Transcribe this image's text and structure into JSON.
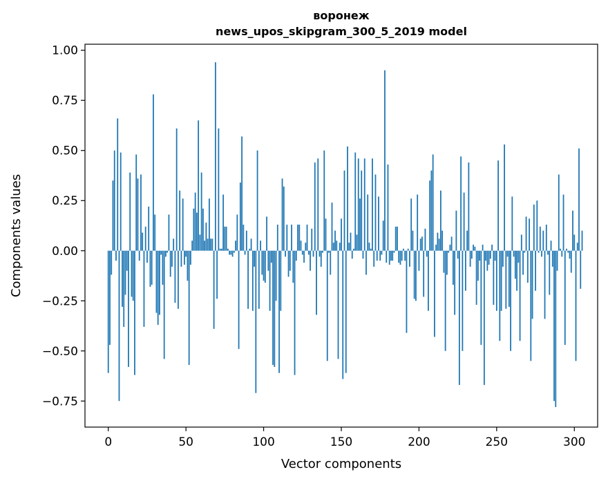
{
  "chart_data": {
    "type": "bar",
    "title": "воронеж",
    "subtitle": "news_upos_skipgram_300_5_2019 model",
    "xlabel": "Vector components",
    "ylabel": "Components values",
    "xlim": [
      -15,
      315
    ],
    "ylim": [
      -0.88,
      1.03
    ],
    "xticks": [
      0,
      50,
      100,
      150,
      200,
      250,
      300
    ],
    "xtick_labels": [
      "0",
      "50",
      "100",
      "150",
      "200",
      "250",
      "300"
    ],
    "yticks": [
      -0.75,
      -0.5,
      -0.25,
      0.0,
      0.25,
      0.5,
      0.75,
      1.0
    ],
    "ytick_labels": [
      "−0.75",
      "−0.50",
      "−0.25",
      "0.00",
      "0.25",
      "0.50",
      "0.75",
      "1.00"
    ],
    "bar_color": "#1f77b4",
    "grid": false,
    "values": [
      -0.61,
      -0.47,
      -0.12,
      0.35,
      0.5,
      -0.05,
      0.66,
      -0.75,
      0.49,
      -0.28,
      -0.38,
      -0.22,
      -0.1,
      -0.58,
      0.39,
      -0.23,
      -0.25,
      -0.62,
      0.48,
      0.36,
      -0.05,
      0.38,
      0.09,
      -0.38,
      0.12,
      -0.06,
      0.22,
      -0.18,
      -0.17,
      0.78,
      0.18,
      -0.31,
      -0.37,
      -0.32,
      -0.02,
      -0.17,
      -0.54,
      -0.03,
      -0.01,
      0.18,
      -0.13,
      -0.08,
      0.06,
      -0.26,
      0.61,
      -0.29,
      0.3,
      -0.08,
      0.26,
      -0.07,
      -0.03,
      -0.15,
      -0.57,
      -0.07,
      0.05,
      0.21,
      0.29,
      0.19,
      0.65,
      0.08,
      0.39,
      0.21,
      0.05,
      0.14,
      0.06,
      0.26,
      0.06,
      0.06,
      -0.39,
      0.94,
      -0.24,
      0.61,
      0.01,
      0.01,
      0.28,
      0.12,
      0.12,
      0.01,
      -0.02,
      -0.02,
      -0.03,
      -0.01,
      0.05,
      0.18,
      -0.49,
      0.34,
      0.57,
      0.13,
      -0.02,
      0.1,
      -0.29,
      0.01,
      0.06,
      -0.3,
      -0.08,
      -0.71,
      0.5,
      -0.29,
      0.05,
      -0.12,
      -0.15,
      -0.16,
      0.17,
      -0.1,
      -0.3,
      -0.06,
      -0.57,
      -0.58,
      -0.25,
      0.13,
      -0.61,
      -0.3,
      0.36,
      0.32,
      -0.03,
      0.13,
      -0.13,
      -0.1,
      0.13,
      -0.16,
      -0.62,
      -0.05,
      0.13,
      0.13,
      0.05,
      -0.02,
      -0.06,
      0.04,
      0.13,
      -0.02,
      -0.1,
      0.11,
      -0.03,
      0.44,
      -0.32,
      0.46,
      -0.03,
      -0.08,
      -0.01,
      0.5,
      0.16,
      -0.55,
      -0.01,
      -0.12,
      0.24,
      0.04,
      0.1,
      0.05,
      -0.54,
      0.04,
      0.16,
      -0.64,
      0.4,
      -0.61,
      0.52,
      0.04,
      0.09,
      -0.04,
      0.01,
      0.49,
      0.08,
      0.46,
      0.26,
      0.4,
      -0.04,
      0.46,
      -0.12,
      0.28,
      0.04,
      0.01,
      0.46,
      -0.08,
      0.38,
      -0.05,
      0.27,
      -0.05,
      -0.02,
      0.15,
      0.9,
      -0.06,
      0.43,
      -0.07,
      -0.05,
      -0.05,
      -0.01,
      0.12,
      0.12,
      -0.06,
      -0.07,
      -0.05,
      0.01,
      -0.05,
      -0.41,
      0.01,
      -0.08,
      0.26,
      0.1,
      -0.24,
      -0.25,
      0.28,
      -0.1,
      0.06,
      0.07,
      -0.23,
      0.11,
      -0.03,
      -0.3,
      0.35,
      0.4,
      0.48,
      -0.43,
      0.03,
      0.09,
      0.06,
      0.3,
      0.1,
      -0.11,
      -0.5,
      -0.12,
      -0.01,
      0.03,
      0.07,
      -0.17,
      -0.32,
      0.2,
      -0.04,
      -0.67,
      0.47,
      -0.5,
      0.29,
      -0.2,
      0.1,
      0.44,
      -0.08,
      -0.04,
      0.03,
      0.02,
      -0.27,
      -0.15,
      -0.05,
      -0.47,
      0.03,
      -0.67,
      -0.05,
      -0.1,
      -0.07,
      -0.04,
      0.03,
      -0.27,
      -0.05,
      -0.3,
      0.45,
      -0.45,
      -0.3,
      -0.08,
      0.53,
      -0.29,
      -0.03,
      -0.28,
      -0.5,
      0.27,
      -0.03,
      -0.14,
      -0.2,
      -0.06,
      -0.45,
      0.08,
      -0.12,
      -0.01,
      0.17,
      -0.16,
      0.16,
      -0.55,
      -0.34,
      0.23,
      -0.2,
      0.25,
      -0.01,
      0.12,
      -0.03,
      0.1,
      -0.34,
      0.13,
      -0.02,
      -0.22,
      0.05,
      -0.08,
      -0.75,
      -0.78,
      -0.1,
      0.38,
      0.01,
      -0.03,
      0.28,
      -0.47,
      0.01,
      -0.01,
      -0.04,
      -0.11,
      0.2,
      0.08,
      -0.55,
      0.04,
      0.51,
      -0.19,
      0.1
    ]
  }
}
